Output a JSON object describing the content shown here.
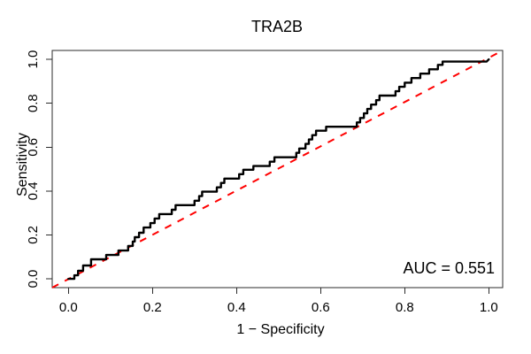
{
  "figure": {
    "background": "#ffffff"
  },
  "chart_data": {
    "type": "line",
    "subtype": "roc-step-curve",
    "title": "TRA2B",
    "xlabel": "1 − Specificity",
    "ylabel": "Sensitivity",
    "annotation": "AUC = 0.551",
    "auc": 0.551,
    "xlim": [
      0,
      1
    ],
    "ylim": [
      0,
      1
    ],
    "grid": false,
    "legend_position": "none",
    "x_tick_values": [
      0.0,
      0.2,
      0.4,
      0.6,
      0.8,
      1.0
    ],
    "x_tick_labels": [
      "0.0",
      "0.2",
      "0.4",
      "0.6",
      "0.8",
      "1.0"
    ],
    "y_tick_values": [
      0.0,
      0.2,
      0.4,
      0.6,
      0.8,
      1.0
    ],
    "y_tick_labels": [
      "0.0",
      "0.2",
      "0.4",
      "0.6",
      "0.8",
      "1.0"
    ],
    "series": [
      {
        "name": "ROC curve",
        "style": "solid-step",
        "color": "#000000",
        "line_width": 2.4,
        "points": [
          [
            0.0,
            0.0
          ],
          [
            0.014,
            0.0
          ],
          [
            0.014,
            0.016
          ],
          [
            0.023,
            0.016
          ],
          [
            0.023,
            0.037
          ],
          [
            0.035,
            0.037
          ],
          [
            0.035,
            0.061
          ],
          [
            0.054,
            0.061
          ],
          [
            0.054,
            0.089
          ],
          [
            0.09,
            0.089
          ],
          [
            0.09,
            0.109
          ],
          [
            0.119,
            0.109
          ],
          [
            0.119,
            0.129
          ],
          [
            0.142,
            0.129
          ],
          [
            0.142,
            0.15
          ],
          [
            0.153,
            0.15
          ],
          [
            0.153,
            0.17
          ],
          [
            0.158,
            0.17
          ],
          [
            0.158,
            0.19
          ],
          [
            0.168,
            0.19
          ],
          [
            0.168,
            0.21
          ],
          [
            0.179,
            0.21
          ],
          [
            0.179,
            0.234
          ],
          [
            0.195,
            0.234
          ],
          [
            0.195,
            0.254
          ],
          [
            0.205,
            0.254
          ],
          [
            0.205,
            0.275
          ],
          [
            0.216,
            0.275
          ],
          [
            0.216,
            0.295
          ],
          [
            0.246,
            0.295
          ],
          [
            0.246,
            0.315
          ],
          [
            0.255,
            0.315
          ],
          [
            0.255,
            0.336
          ],
          [
            0.3,
            0.336
          ],
          [
            0.3,
            0.356
          ],
          [
            0.311,
            0.356
          ],
          [
            0.311,
            0.377
          ],
          [
            0.318,
            0.377
          ],
          [
            0.318,
            0.397
          ],
          [
            0.353,
            0.397
          ],
          [
            0.353,
            0.417
          ],
          [
            0.363,
            0.417
          ],
          [
            0.363,
            0.437
          ],
          [
            0.371,
            0.437
          ],
          [
            0.371,
            0.457
          ],
          [
            0.406,
            0.457
          ],
          [
            0.406,
            0.477
          ],
          [
            0.416,
            0.477
          ],
          [
            0.416,
            0.497
          ],
          [
            0.44,
            0.497
          ],
          [
            0.44,
            0.514
          ],
          [
            0.479,
            0.514
          ],
          [
            0.479,
            0.534
          ],
          [
            0.49,
            0.534
          ],
          [
            0.49,
            0.554
          ],
          [
            0.542,
            0.554
          ],
          [
            0.542,
            0.574
          ],
          [
            0.549,
            0.574
          ],
          [
            0.549,
            0.594
          ],
          [
            0.564,
            0.594
          ],
          [
            0.564,
            0.615
          ],
          [
            0.572,
            0.615
          ],
          [
            0.572,
            0.635
          ],
          [
            0.58,
            0.635
          ],
          [
            0.58,
            0.655
          ],
          [
            0.589,
            0.655
          ],
          [
            0.589,
            0.675
          ],
          [
            0.613,
            0.675
          ],
          [
            0.613,
            0.693
          ],
          [
            0.686,
            0.693
          ],
          [
            0.686,
            0.713
          ],
          [
            0.694,
            0.713
          ],
          [
            0.694,
            0.733
          ],
          [
            0.703,
            0.733
          ],
          [
            0.703,
            0.754
          ],
          [
            0.711,
            0.754
          ],
          [
            0.711,
            0.774
          ],
          [
            0.72,
            0.774
          ],
          [
            0.72,
            0.794
          ],
          [
            0.732,
            0.794
          ],
          [
            0.732,
            0.814
          ],
          [
            0.74,
            0.814
          ],
          [
            0.74,
            0.835
          ],
          [
            0.778,
            0.835
          ],
          [
            0.778,
            0.855
          ],
          [
            0.787,
            0.855
          ],
          [
            0.787,
            0.875
          ],
          [
            0.8,
            0.875
          ],
          [
            0.8,
            0.894
          ],
          [
            0.816,
            0.894
          ],
          [
            0.816,
            0.915
          ],
          [
            0.837,
            0.915
          ],
          [
            0.837,
            0.935
          ],
          [
            0.858,
            0.935
          ],
          [
            0.858,
            0.955
          ],
          [
            0.879,
            0.955
          ],
          [
            0.879,
            0.975
          ],
          [
            0.89,
            0.975
          ],
          [
            0.89,
            0.99
          ],
          [
            0.995,
            0.99
          ],
          [
            1.0,
            1.0
          ]
        ]
      },
      {
        "name": "chance diagonal",
        "style": "dashed-line",
        "color": "#FF0000",
        "line_width": 2,
        "points": [
          [
            0,
            0
          ],
          [
            1,
            1
          ]
        ]
      }
    ]
  },
  "colors": {
    "curve": "#000000",
    "diagonal": "#FF0000",
    "axis": "#2b2b2b",
    "text": "#000000",
    "background": "#ffffff"
  }
}
